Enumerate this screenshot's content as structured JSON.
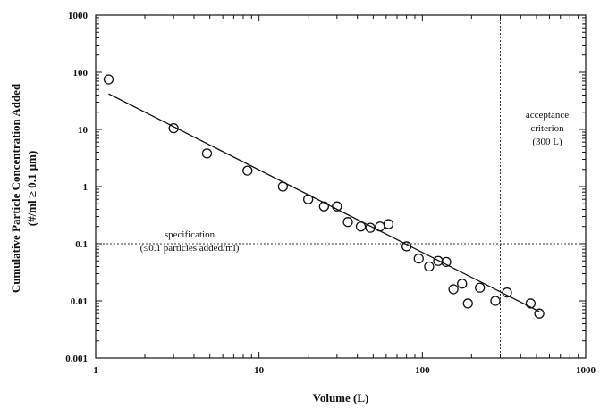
{
  "chart_data": {
    "type": "scatter",
    "xscale": "log",
    "yscale": "log",
    "xlabel": "Volume (L)",
    "ylabel_line1": "Cumulative Particle Concentration Added",
    "ylabel_line2": "(#/ml ≥ 0.1 μm)",
    "xlim": [
      1,
      1000
    ],
    "ylim": [
      0.001,
      1000
    ],
    "x_ticks": [
      {
        "value": 1,
        "label": "1"
      },
      {
        "value": 10,
        "label": "10"
      },
      {
        "value": 100,
        "label": "100"
      },
      {
        "value": 1000,
        "label": "1000"
      }
    ],
    "y_ticks": [
      {
        "value": 0.001,
        "label": "0.001"
      },
      {
        "value": 0.01,
        "label": "0.01"
      },
      {
        "value": 0.1,
        "label": "0.1"
      },
      {
        "value": 1,
        "label": "1"
      },
      {
        "value": 10,
        "label": "10"
      },
      {
        "value": 100,
        "label": "100"
      },
      {
        "value": 1000,
        "label": "1000"
      }
    ],
    "grid": false,
    "series": [
      {
        "marker": "open-circle",
        "points": [
          {
            "x": 1.2,
            "y": 75
          },
          {
            "x": 3.0,
            "y": 10.5
          },
          {
            "x": 4.8,
            "y": 3.8
          },
          {
            "x": 8.5,
            "y": 1.9
          },
          {
            "x": 14,
            "y": 1.0
          },
          {
            "x": 20,
            "y": 0.6
          },
          {
            "x": 25,
            "y": 0.45
          },
          {
            "x": 30,
            "y": 0.45
          },
          {
            "x": 35,
            "y": 0.24
          },
          {
            "x": 42,
            "y": 0.2
          },
          {
            "x": 48,
            "y": 0.19
          },
          {
            "x": 55,
            "y": 0.2
          },
          {
            "x": 62,
            "y": 0.22
          },
          {
            "x": 80,
            "y": 0.09
          },
          {
            "x": 95,
            "y": 0.055
          },
          {
            "x": 110,
            "y": 0.04
          },
          {
            "x": 125,
            "y": 0.05
          },
          {
            "x": 140,
            "y": 0.048
          },
          {
            "x": 155,
            "y": 0.016
          },
          {
            "x": 175,
            "y": 0.02
          },
          {
            "x": 190,
            "y": 0.009
          },
          {
            "x": 225,
            "y": 0.017
          },
          {
            "x": 280,
            "y": 0.01
          },
          {
            "x": 330,
            "y": 0.014
          },
          {
            "x": 460,
            "y": 0.009
          },
          {
            "x": 520,
            "y": 0.006
          }
        ]
      }
    ],
    "fit_line": {
      "x_start": 1.2,
      "y_start": 42,
      "x_end": 520,
      "y_end": 0.0065
    },
    "reference_lines": [
      {
        "orientation": "horizontal",
        "value": 0.1,
        "style": "dotted"
      },
      {
        "orientation": "vertical",
        "value": 300,
        "style": "dotted"
      }
    ],
    "annotations": {
      "specification": {
        "line1": "specification",
        "line2": "(≤0.1 particles added/ml)"
      },
      "acceptance": {
        "line1": "acceptance",
        "line2": "criterion",
        "line3": "(300 L)"
      }
    }
  }
}
